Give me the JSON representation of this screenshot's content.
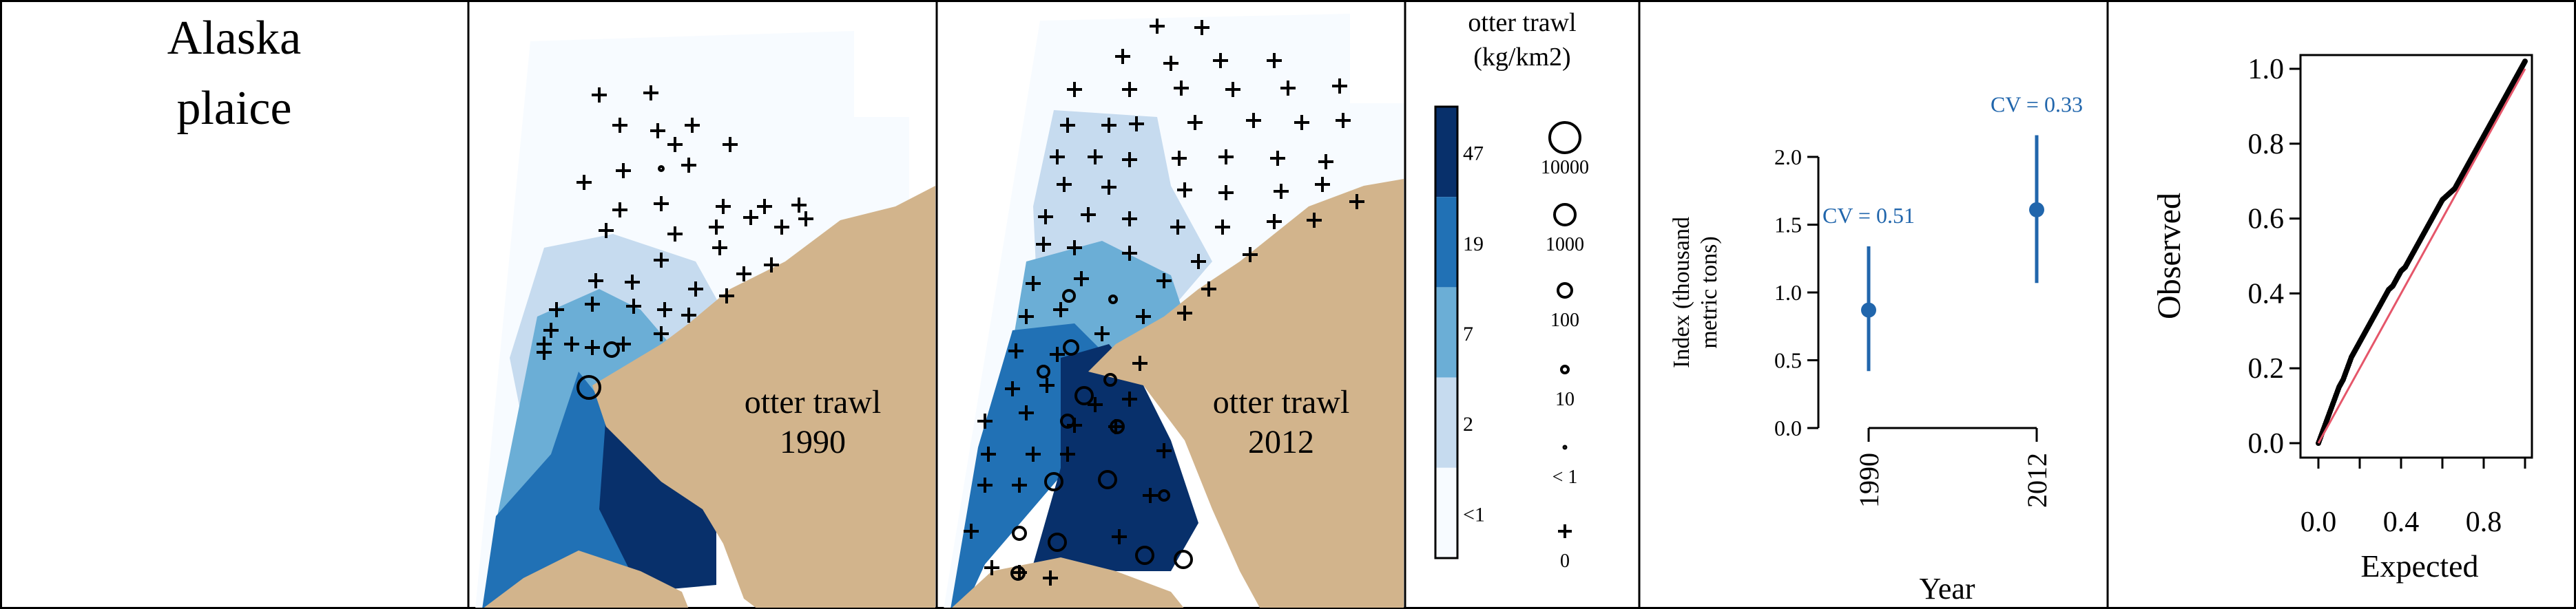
{
  "species": [
    "Alaska",
    "plaice"
  ],
  "maps": [
    {
      "label": [
        "otter trawl",
        "1990"
      ]
    },
    {
      "label": [
        "otter trawl",
        "2012"
      ]
    }
  ],
  "legend": {
    "title": [
      "otter trawl",
      "(kg/km2)"
    ],
    "color_labels": [
      "47",
      "19",
      "7",
      "2",
      "<1"
    ],
    "colors": [
      "#08306b",
      "#2171b5",
      "#6baed6",
      "#c6dbef",
      "#f7fbff"
    ],
    "size_labels": [
      "10000",
      "1000",
      "100",
      "10",
      "< 1",
      "0"
    ]
  },
  "colors": {
    "land": "#d2b48c",
    "series": "#2166ac",
    "qq_line": "#e5566a"
  },
  "chart_data": [
    {
      "type": "scatter",
      "title": "",
      "xlabel": "Year",
      "ylabel": "Index (thousand metric tons)",
      "ylabel_lines": [
        "Index (thousand",
        "metric tons)"
      ],
      "x": [
        "1990",
        "2012"
      ],
      "y": [
        0.87,
        1.61
      ],
      "lower": [
        0.42,
        1.07
      ],
      "upper": [
        1.34,
        2.16
      ],
      "annotations": [
        "CV = 0.51",
        "CV = 0.33"
      ],
      "ylim": [
        0,
        2.0
      ],
      "yticks": [
        0.0,
        0.5,
        1.0,
        1.5,
        2.0
      ],
      "ytick_labels": [
        "0.0",
        "0.5",
        "1.0",
        "1.5",
        "2.0"
      ]
    },
    {
      "type": "scatter",
      "title": "",
      "xlabel": "Expected",
      "ylabel": "Observed",
      "xlim": [
        0,
        1
      ],
      "ylim": [
        0,
        1
      ],
      "xticks": [
        0.0,
        0.4,
        0.8
      ],
      "xtick_labels": [
        "0.0",
        "0.4",
        "0.8"
      ],
      "yticks": [
        0.0,
        0.2,
        0.4,
        0.6,
        0.8,
        1.0
      ],
      "ytick_labels": [
        "0.0",
        "0.2",
        "0.4",
        "0.6",
        "0.8",
        "1.0"
      ],
      "points": [
        [
          0.0,
          0.0
        ],
        [
          0.02,
          0.03
        ],
        [
          0.04,
          0.06
        ],
        [
          0.06,
          0.09
        ],
        [
          0.08,
          0.12
        ],
        [
          0.1,
          0.15
        ],
        [
          0.12,
          0.17
        ],
        [
          0.14,
          0.2
        ],
        [
          0.16,
          0.23
        ],
        [
          0.18,
          0.25
        ],
        [
          0.2,
          0.27
        ],
        [
          0.22,
          0.29
        ],
        [
          0.24,
          0.31
        ],
        [
          0.26,
          0.33
        ],
        [
          0.28,
          0.35
        ],
        [
          0.3,
          0.37
        ],
        [
          0.32,
          0.39
        ],
        [
          0.34,
          0.41
        ],
        [
          0.36,
          0.42
        ],
        [
          0.38,
          0.44
        ],
        [
          0.4,
          0.46
        ],
        [
          0.42,
          0.47
        ],
        [
          0.44,
          0.49
        ],
        [
          0.46,
          0.51
        ],
        [
          0.48,
          0.53
        ],
        [
          0.5,
          0.55
        ],
        [
          0.52,
          0.57
        ],
        [
          0.54,
          0.59
        ],
        [
          0.56,
          0.61
        ],
        [
          0.58,
          0.63
        ],
        [
          0.6,
          0.65
        ],
        [
          0.62,
          0.66
        ],
        [
          0.64,
          0.67
        ],
        [
          0.66,
          0.68
        ],
        [
          0.68,
          0.7
        ],
        [
          0.7,
          0.72
        ],
        [
          0.72,
          0.74
        ],
        [
          0.74,
          0.76
        ],
        [
          0.76,
          0.78
        ],
        [
          0.78,
          0.8
        ],
        [
          0.8,
          0.82
        ],
        [
          0.82,
          0.84
        ],
        [
          0.84,
          0.86
        ],
        [
          0.86,
          0.88
        ],
        [
          0.88,
          0.9
        ],
        [
          0.9,
          0.92
        ],
        [
          0.92,
          0.94
        ],
        [
          0.94,
          0.96
        ],
        [
          0.96,
          0.98
        ],
        [
          0.98,
          1.0
        ],
        [
          1.0,
          1.02
        ]
      ]
    }
  ]
}
